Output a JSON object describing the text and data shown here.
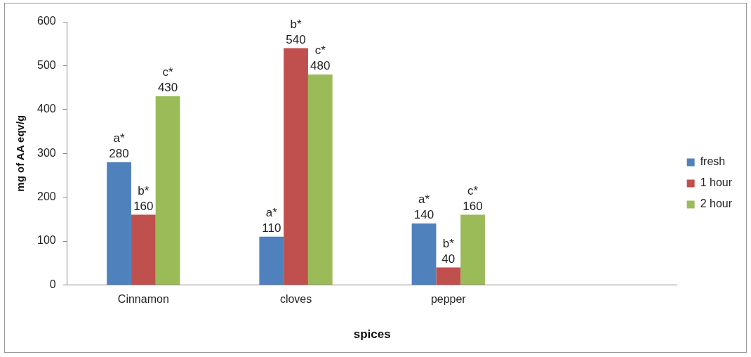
{
  "chart_data": {
    "type": "bar",
    "xlabel": "spices",
    "ylabel": "mg of AA eqv/g",
    "categories": [
      "Cinnamon",
      "cloves",
      "pepper",
      null
    ],
    "series": [
      {
        "name": "fresh",
        "color": "#4f81bd",
        "values": [
          280,
          110,
          140,
          null
        ],
        "value_labels": [
          "a*\n280",
          "a*\n110",
          "a*\n140",
          null
        ]
      },
      {
        "name": "1 hour",
        "color": "#c0504d",
        "values": [
          160,
          540,
          40,
          null
        ],
        "value_labels": [
          "b*\n160",
          "b*\n540",
          "b*\n40",
          null
        ]
      },
      {
        "name": "2 hour",
        "color": "#9bbb59",
        "values": [
          430,
          480,
          160,
          null
        ],
        "value_labels": [
          "c*\n430",
          "c*\n480",
          "c*\n160",
          null
        ]
      }
    ],
    "ylim": [
      0,
      600
    ],
    "yticks": [
      0,
      100,
      200,
      300,
      400,
      500,
      600
    ],
    "legend": "right"
  }
}
